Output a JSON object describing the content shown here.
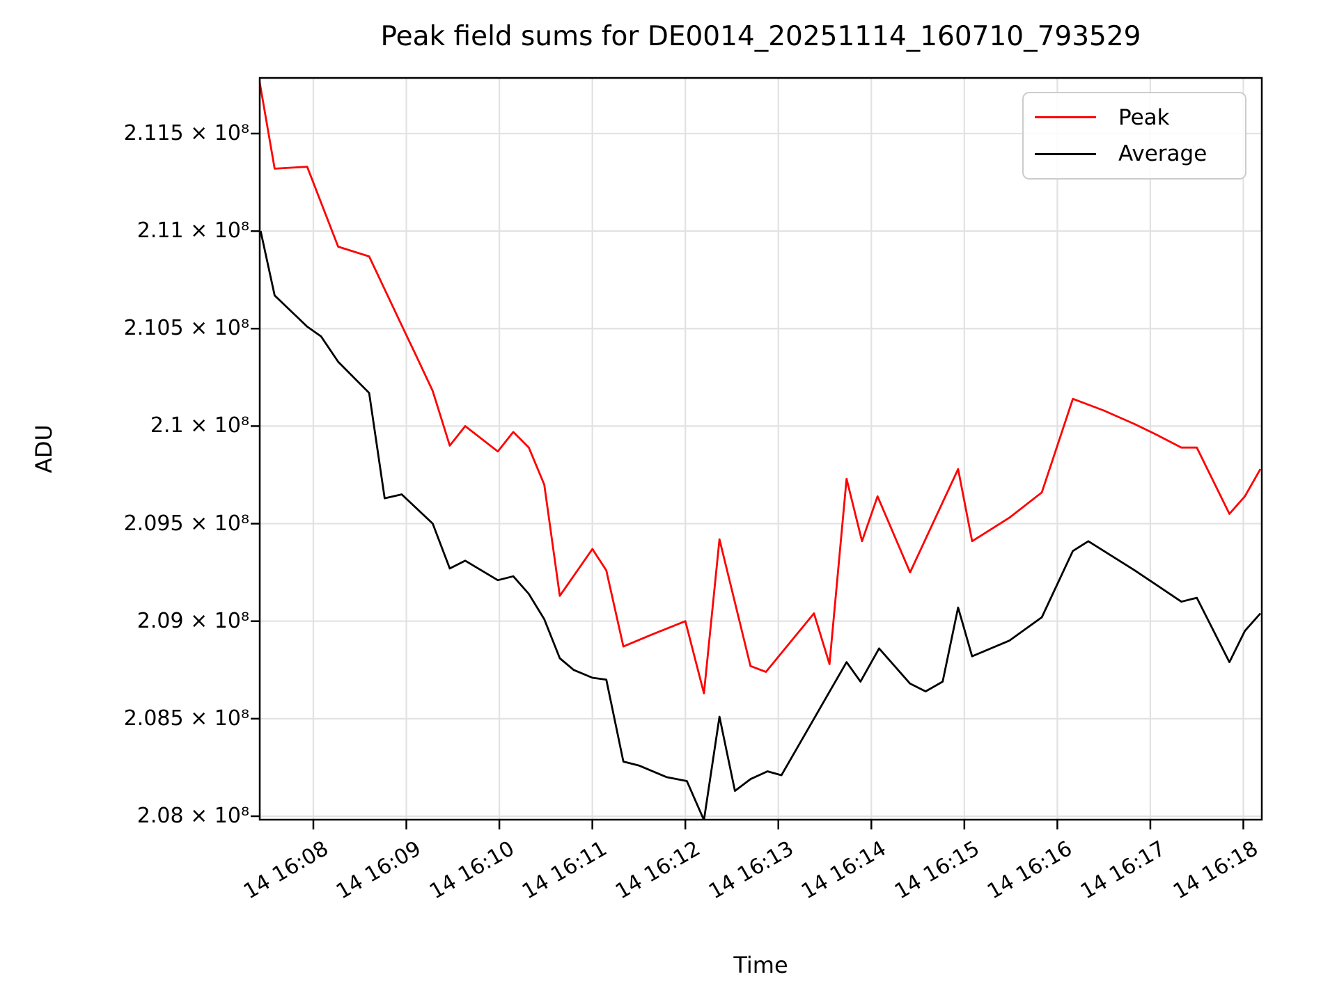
{
  "figure": {
    "background": "#ffffff"
  },
  "chart_data": {
    "type": "line",
    "title": "Peak field sums for DE0014_20251114_160710_793529",
    "xlabel": "Time",
    "ylabel": "ADU",
    "value_unit": "ADU",
    "value_scale": 100000000,
    "grid": true,
    "xlim": [
      "16:07:25",
      "16:18:12"
    ],
    "ylim": [
      2.0797,
      2.1181
    ],
    "x_tick_times": [
      "16:08:00",
      "16:09:00",
      "16:10:00",
      "16:11:00",
      "16:12:00",
      "16:13:00",
      "16:14:00",
      "16:15:00",
      "16:16:00",
      "16:17:00",
      "16:18:00"
    ],
    "x_ticklabels": [
      "14 16:08",
      "14 16:09",
      "14 16:10",
      "14 16:11",
      "14 16:12",
      "14 16:13",
      "14 16:14",
      "14 16:15",
      "14 16:16",
      "14 16:17",
      "14 16:18"
    ],
    "y_tickvalues": [
      2.115,
      2.11,
      2.105,
      2.1,
      2.095,
      2.09,
      2.085,
      2.08
    ],
    "y_ticklabels": [
      "2.115 × 10⁸",
      "2.11 × 10⁸",
      "2.105 × 10⁸",
      "2.1 × 10⁸",
      "2.095 × 10⁸",
      "2.09 × 10⁸",
      "2.085 × 10⁸",
      "2.08 × 10⁸"
    ],
    "legend": {
      "position": "upper right",
      "entries": [
        "Peak",
        "Average"
      ]
    },
    "series": [
      {
        "name": "Peak",
        "color": "#ff0000",
        "points": [
          [
            "16:07:25",
            2.1178
          ],
          [
            "16:07:35",
            2.1132
          ],
          [
            "16:07:56",
            2.1133
          ],
          [
            "16:08:16",
            2.1092
          ],
          [
            "16:08:36",
            2.1087
          ],
          [
            "16:08:58",
            2.105
          ],
          [
            "16:09:07",
            2.1035
          ],
          [
            "16:09:17",
            2.1018
          ],
          [
            "16:09:28",
            2.099
          ],
          [
            "16:09:38",
            2.1
          ],
          [
            "16:09:59",
            2.0987
          ],
          [
            "16:10:09",
            2.0997
          ],
          [
            "16:10:19",
            2.0989
          ],
          [
            "16:10:29",
            2.097
          ],
          [
            "16:10:39",
            2.0913
          ],
          [
            "16:11:00",
            2.0937
          ],
          [
            "16:11:09",
            2.0926
          ],
          [
            "16:11:20",
            2.0887
          ],
          [
            "16:11:38",
            2.0893
          ],
          [
            "16:12:00",
            2.09
          ],
          [
            "16:12:12",
            2.0863
          ],
          [
            "16:12:22",
            2.0942
          ],
          [
            "16:12:42",
            2.0877
          ],
          [
            "16:12:52",
            2.0874
          ],
          [
            "16:13:23",
            2.0904
          ],
          [
            "16:13:33",
            2.0878
          ],
          [
            "16:13:44",
            2.0973
          ],
          [
            "16:13:54",
            2.0941
          ],
          [
            "16:14:04",
            2.0964
          ],
          [
            "16:14:25",
            2.0925
          ],
          [
            "16:14:56",
            2.0978
          ],
          [
            "16:15:05",
            2.0941
          ],
          [
            "16:15:29",
            2.0953
          ],
          [
            "16:15:50",
            2.0966
          ],
          [
            "16:16:10",
            2.1014
          ],
          [
            "16:16:30",
            2.1008
          ],
          [
            "16:16:50",
            2.1001
          ],
          [
            "16:17:03",
            2.0996
          ],
          [
            "16:17:20",
            2.0989
          ],
          [
            "16:17:30",
            2.0989
          ],
          [
            "16:17:51",
            2.0955
          ],
          [
            "16:18:01",
            2.0964
          ],
          [
            "16:18:11",
            2.0978
          ]
        ]
      },
      {
        "name": "Average",
        "color": "#000000",
        "points": [
          [
            "16:07:26",
            2.11
          ],
          [
            "16:07:35",
            2.1067
          ],
          [
            "16:07:56",
            2.1051
          ],
          [
            "16:08:05",
            2.1046
          ],
          [
            "16:08:16",
            2.1033
          ],
          [
            "16:08:36",
            2.1017
          ],
          [
            "16:08:46",
            2.0963
          ],
          [
            "16:08:57",
            2.0965
          ],
          [
            "16:09:17",
            2.095
          ],
          [
            "16:09:28",
            2.0927
          ],
          [
            "16:09:38",
            2.0931
          ],
          [
            "16:09:59",
            2.0921
          ],
          [
            "16:10:09",
            2.0923
          ],
          [
            "16:10:19",
            2.0914
          ],
          [
            "16:10:29",
            2.0901
          ],
          [
            "16:10:39",
            2.0881
          ],
          [
            "16:10:48",
            2.0875
          ],
          [
            "16:11:00",
            2.0871
          ],
          [
            "16:11:09",
            2.087
          ],
          [
            "16:11:20",
            2.0828
          ],
          [
            "16:11:30",
            2.0826
          ],
          [
            "16:11:48",
            2.082
          ],
          [
            "16:12:01",
            2.0818
          ],
          [
            "16:12:12",
            2.0798
          ],
          [
            "16:12:22",
            2.0851
          ],
          [
            "16:12:32",
            2.0813
          ],
          [
            "16:12:42",
            2.0819
          ],
          [
            "16:12:53",
            2.0823
          ],
          [
            "16:13:02",
            2.0821
          ],
          [
            "16:13:23",
            2.085
          ],
          [
            "16:13:44",
            2.0879
          ],
          [
            "16:13:53",
            2.0869
          ],
          [
            "16:14:05",
            2.0886
          ],
          [
            "16:14:25",
            2.0868
          ],
          [
            "16:14:35",
            2.0864
          ],
          [
            "16:14:46",
            2.0869
          ],
          [
            "16:14:56",
            2.0907
          ],
          [
            "16:15:05",
            2.0882
          ],
          [
            "16:15:29",
            2.089
          ],
          [
            "16:15:50",
            2.0902
          ],
          [
            "16:16:10",
            2.0936
          ],
          [
            "16:16:20",
            2.0941
          ],
          [
            "16:16:50",
            2.0926
          ],
          [
            "16:17:20",
            2.091
          ],
          [
            "16:17:30",
            2.0912
          ],
          [
            "16:17:51",
            2.0879
          ],
          [
            "16:18:01",
            2.0895
          ],
          [
            "16:18:11",
            2.0904
          ]
        ]
      }
    ]
  }
}
